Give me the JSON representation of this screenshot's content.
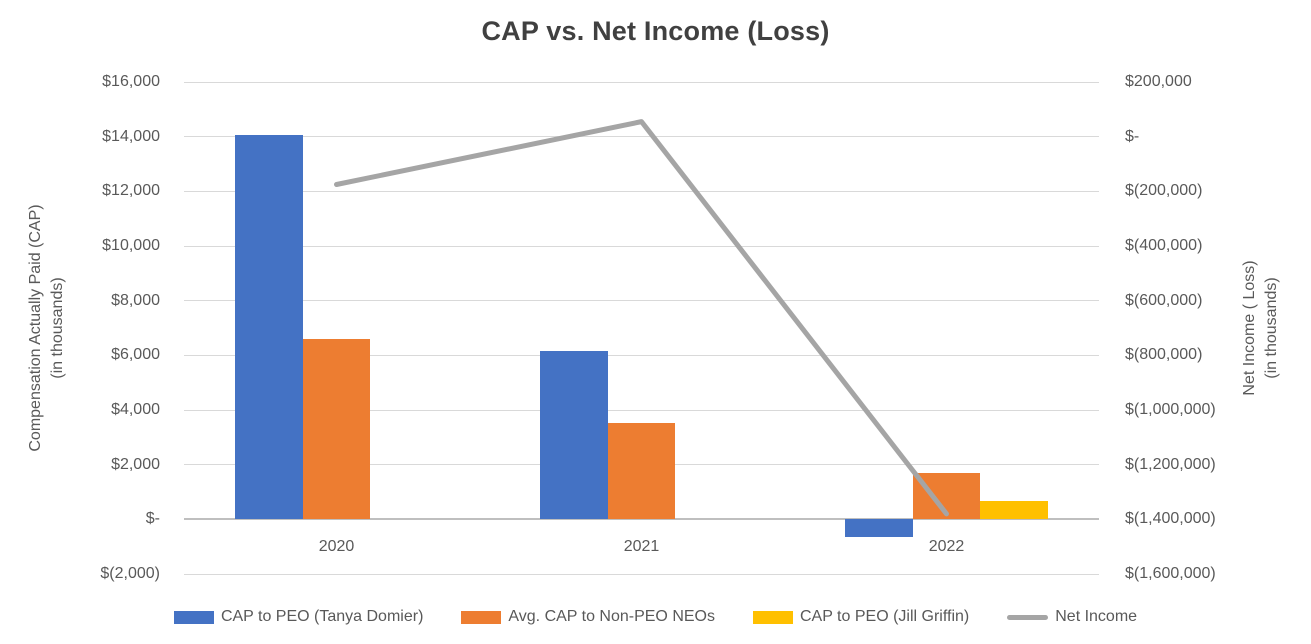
{
  "chart_data": {
    "type": "combo",
    "title": "CAP vs. Net Income (Loss)",
    "categories": [
      "2020",
      "2021",
      "2022"
    ],
    "series": [
      {
        "name": "CAP to PEO (Tanya Domier)",
        "type": "bar",
        "axis": "left",
        "color": "#4472C4",
        "values": [
          14060,
          6150,
          -660
        ]
      },
      {
        "name": "Avg. CAP to Non-PEO NEOs",
        "type": "bar",
        "axis": "left",
        "color": "#ED7D31",
        "values": [
          6580,
          3530,
          1680
        ]
      },
      {
        "name": "CAP to PEO (Jill Griffin)",
        "type": "bar",
        "axis": "left",
        "color": "#FFC000",
        "values": [
          0,
          0,
          670
        ]
      },
      {
        "name": "Net Income",
        "type": "line",
        "axis": "right",
        "color": "#A5A5A5",
        "values": [
          -175000,
          55000,
          -1380000
        ]
      }
    ],
    "left_axis": {
      "title_line1": "Compensation Actually Paid (CAP)",
      "title_line2": "(in thousands)",
      "max": 16000,
      "min": -2000,
      "step": 2000,
      "tick_labels": [
        "$16,000",
        "$14,000",
        "$12,000",
        "$10,000",
        "$8,000",
        "$6,000",
        "$4,000",
        "$2,000",
        "$-",
        "$(2,000)"
      ]
    },
    "right_axis": {
      "title_line1": "Net Income ( Loss)",
      "title_line2": "(in thousands)",
      "max": 200000,
      "min": -1600000,
      "step": 200000,
      "tick_labels": [
        "$200,000",
        "$-",
        "$(200,000)",
        "$(400,000)",
        "$(600,000)",
        "$(800,000)",
        "$(1,000,000)",
        "$(1,200,000)",
        "$(1,400,000)",
        "$(1,600,000)"
      ]
    },
    "grid": true,
    "legend_position": "bottom",
    "colors": {
      "grid": "#D9D9D9",
      "axis_line": "#BFBFBF",
      "text": "#595959",
      "title_text": "#404040"
    }
  }
}
